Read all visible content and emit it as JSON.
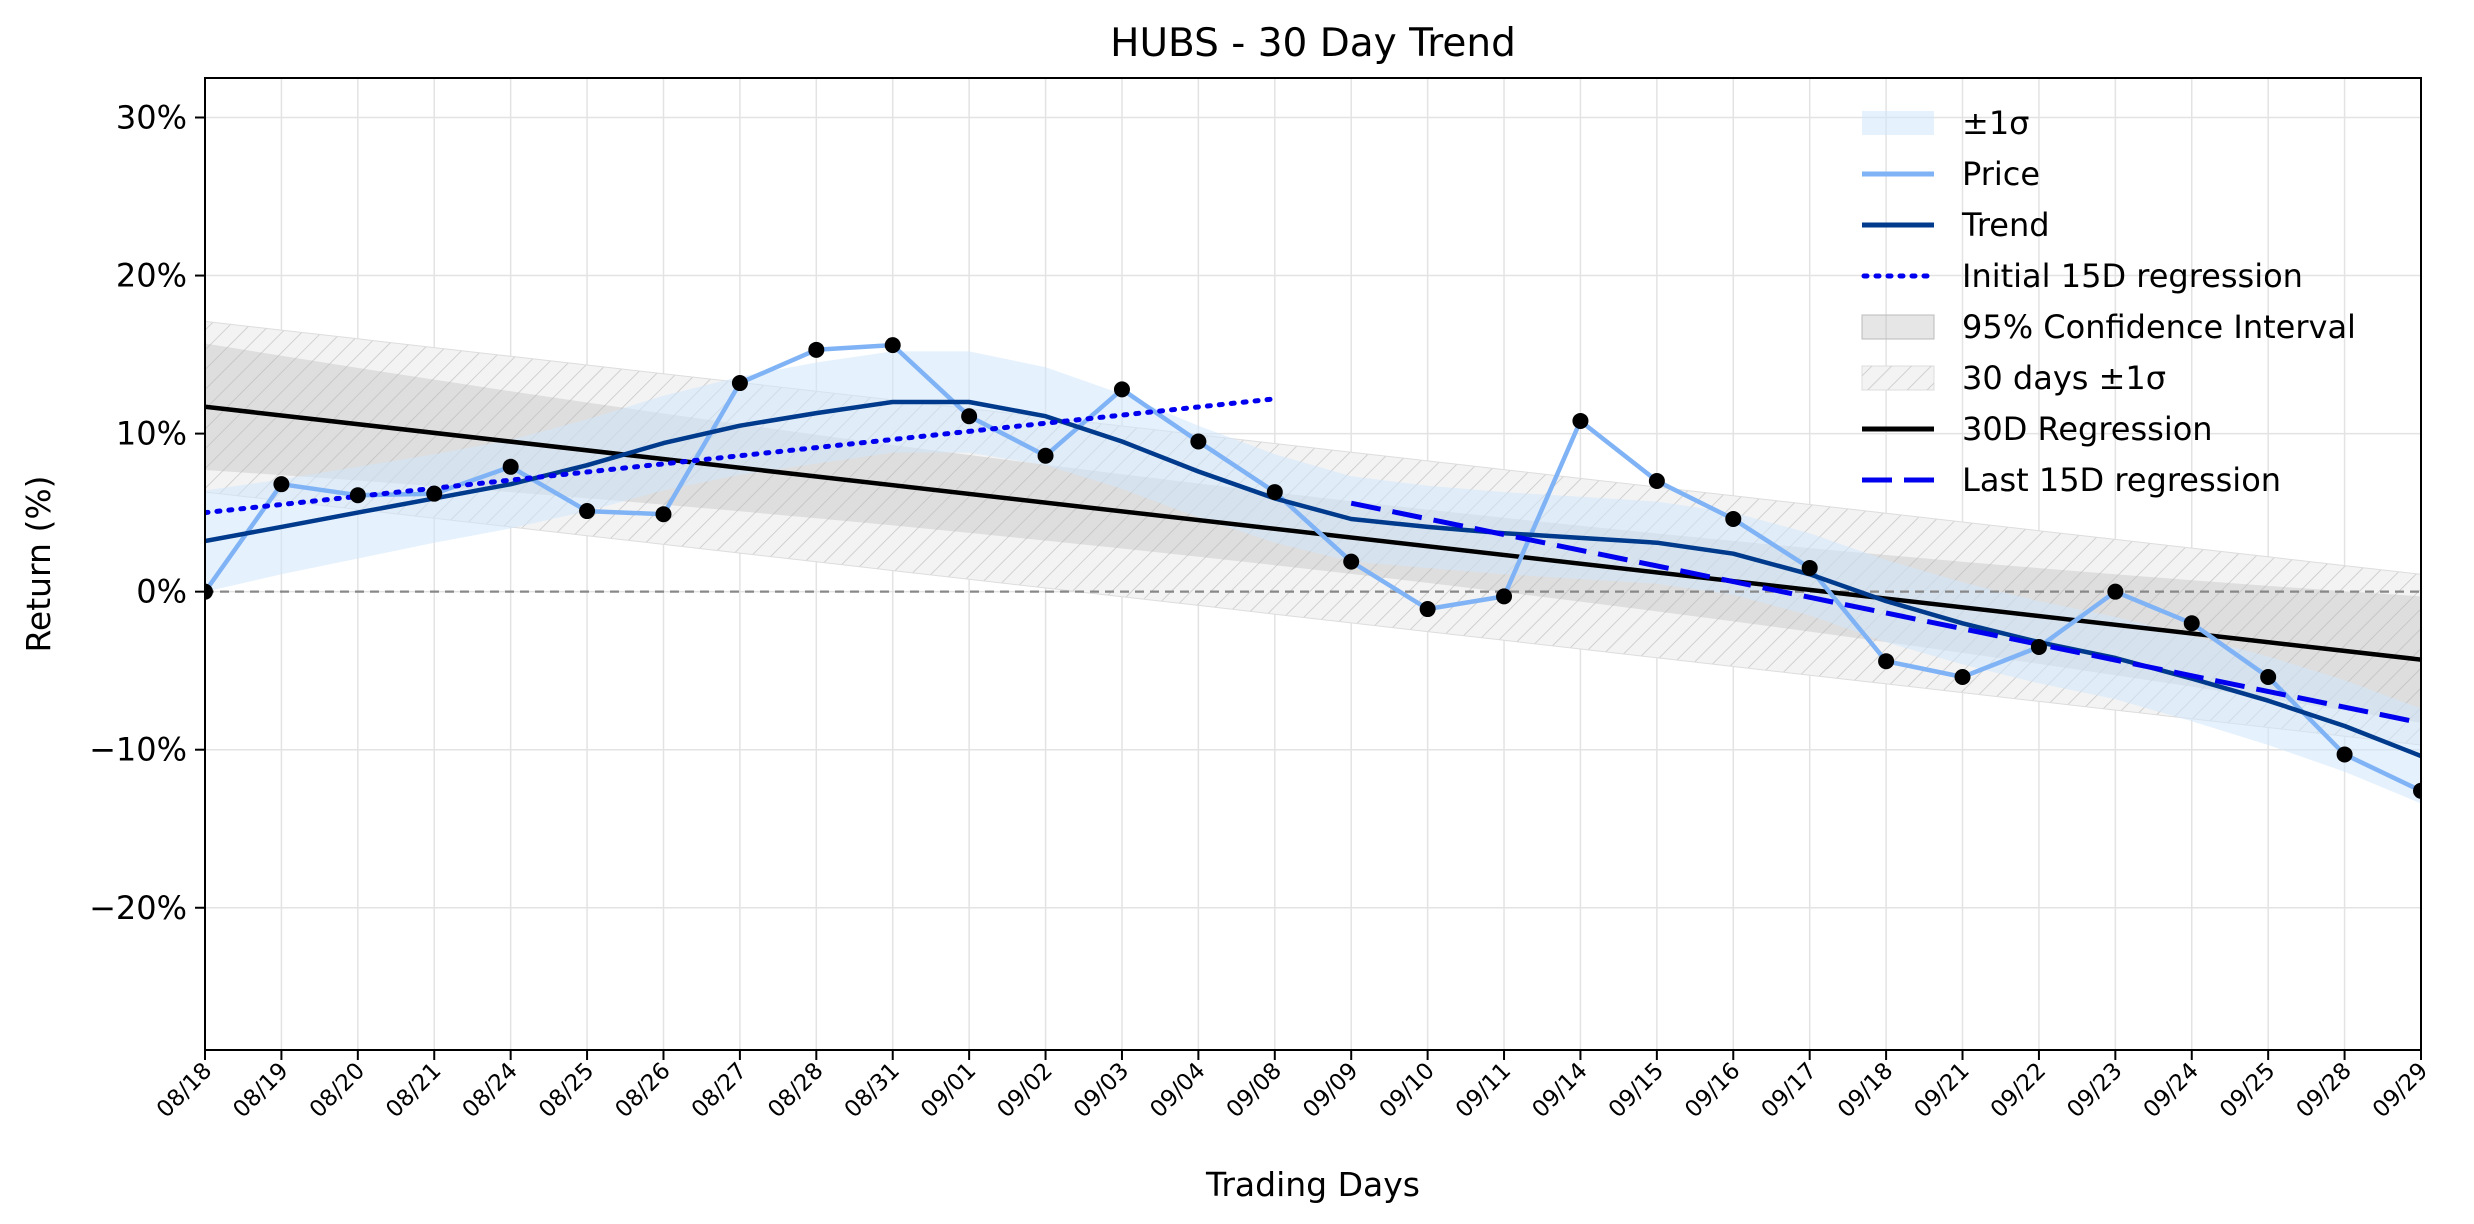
{
  "chart_data": {
    "type": "line",
    "title": "HUBS - 30 Day Trend",
    "xlabel": "Trading Days",
    "ylabel": "Return (%)",
    "ylim": [
      -29,
      32.5
    ],
    "yticks": [
      -20,
      -10,
      0,
      10,
      20,
      30
    ],
    "ytick_labels": [
      "−20%",
      "−10%",
      "0%",
      "10%",
      "20%",
      "30%"
    ],
    "grid": true,
    "legend_position": "top-right",
    "categories": [
      "08/18",
      "08/19",
      "08/20",
      "08/21",
      "08/24",
      "08/25",
      "08/26",
      "08/27",
      "08/28",
      "08/31",
      "09/01",
      "09/02",
      "09/03",
      "09/04",
      "09/08",
      "09/09",
      "09/10",
      "09/11",
      "09/14",
      "09/15",
      "09/16",
      "09/17",
      "09/18",
      "09/21",
      "09/22",
      "09/23",
      "09/24",
      "09/25",
      "09/28",
      "09/29"
    ],
    "price": [
      0,
      6.8,
      6.1,
      6.2,
      7.9,
      5.1,
      4.9,
      13.2,
      15.3,
      15.6,
      11.1,
      8.6,
      12.8,
      9.5,
      6.3,
      1.9,
      -1.1,
      -0.3,
      10.8,
      7.0,
      4.6,
      1.5,
      -4.4,
      -5.4,
      -3.5,
      0,
      -2.0,
      -5.4,
      -10.3,
      -12.6
    ],
    "trend": [
      3.2,
      4.1,
      5.0,
      5.9,
      6.8,
      8.0,
      9.4,
      10.5,
      11.3,
      12.0,
      12.0,
      11.1,
      9.5,
      7.6,
      5.9,
      4.6,
      4.1,
      3.7,
      3.4,
      3.1,
      2.4,
      1.1,
      -0.6,
      -2.0,
      -3.2,
      -4.2,
      -5.5,
      -6.9,
      -8.5,
      -10.4
    ],
    "sigma_band_halfwidth": [
      3.2,
      3.0,
      2.9,
      2.8,
      2.8,
      2.9,
      3.0,
      3.1,
      3.2,
      3.2,
      3.2,
      3.1,
      3.0,
      2.9,
      2.8,
      2.7,
      2.6,
      2.6,
      2.6,
      2.6,
      2.6,
      2.6,
      2.6,
      2.6,
      2.6,
      2.6,
      2.7,
      2.8,
      2.9,
      3.0
    ],
    "regression_30d": {
      "start": 11.7,
      "end": -4.3
    },
    "confidence_95_halfwidth": {
      "start": 4.0,
      "mid": 2.3,
      "end": 4.0
    },
    "sigma_30d_halfwidth": 5.4,
    "initial_15d_regression": {
      "from_index": 0,
      "to_index": 14,
      "start": 5.0,
      "end": 12.2
    },
    "last_15d_regression": {
      "from_index": 15,
      "to_index": 29,
      "start": 5.6,
      "end": -8.3
    },
    "zero_line": 0,
    "legend": [
      {
        "label": "±1σ",
        "kind": "patch-light-blue"
      },
      {
        "label": "Price",
        "kind": "line-light-blue"
      },
      {
        "label": "Trend",
        "kind": "line-dark-blue"
      },
      {
        "label": "Initial 15D regression",
        "kind": "line-dotted-blue"
      },
      {
        "label": "95% Confidence Interval",
        "kind": "patch-gray"
      },
      {
        "label": "30 days ±1σ",
        "kind": "patch-hatched"
      },
      {
        "label": "30D Regression",
        "kind": "line-black"
      },
      {
        "label": "Last 15D regression",
        "kind": "line-dashed-blue"
      }
    ],
    "colors": {
      "price": "#7fb3f5",
      "trend": "#003a8c",
      "sigma_band": "#cfe5fb",
      "confidence": "#b8b8b8",
      "regression": "#000000",
      "dotted": "#0000ee",
      "dashed": "#0000ee",
      "markers": "#000000",
      "zero": "#888888"
    }
  }
}
